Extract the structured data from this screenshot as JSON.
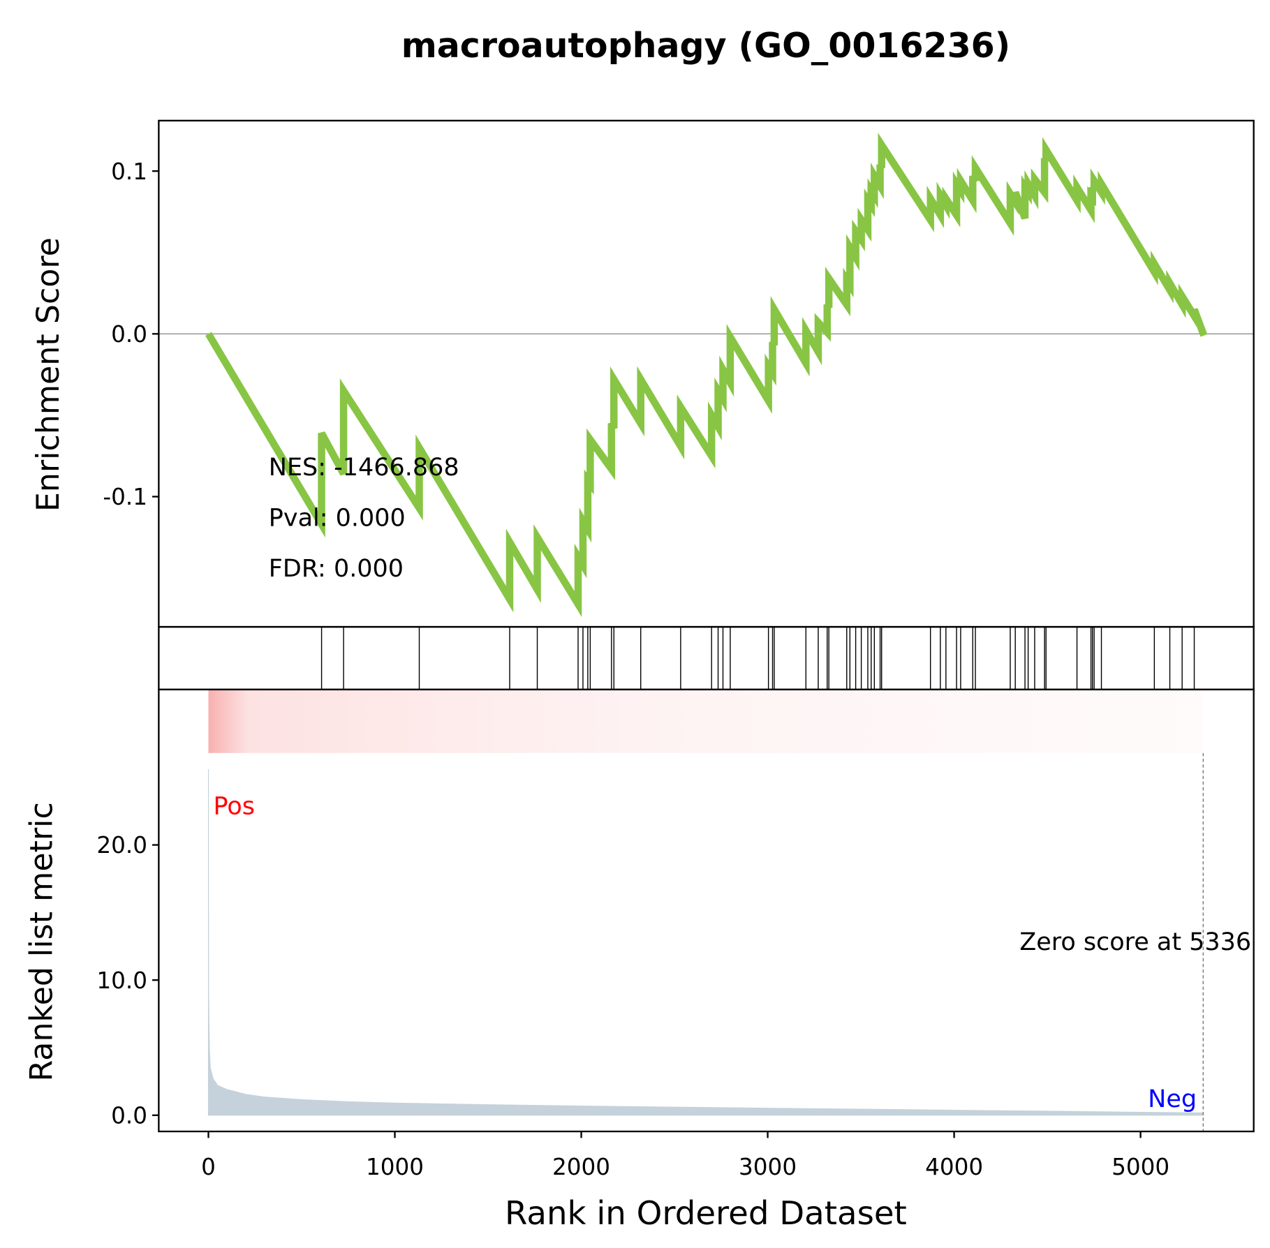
{
  "chart_data": [
    {
      "type": "line",
      "title": "macroautophagy (GO_0016236)",
      "ylabel": "Enrichment Score",
      "color": "#88c544",
      "annotations": [
        "NES: -1466.868",
        "Pval: 0.000",
        "FDR: 0.000"
      ],
      "xlim": [
        -266.4,
        5607
      ],
      "ylim": [
        -0.18,
        0.131
      ],
      "yticks": [
        -0.1,
        {
          "value": 0,
          "label": "0.0"
        },
        0.1
      ],
      "x": [
        0,
        607,
        607,
        725,
        725,
        1131,
        1131,
        1616,
        1616,
        1764,
        1764,
        1983,
        1983,
        2009,
        2009,
        2035,
        2035,
        2048,
        2048,
        2162,
        2162,
        2175,
        2175,
        2319,
        2319,
        2533,
        2533,
        2699,
        2699,
        2734,
        2734,
        2760,
        2760,
        2799,
        2799,
        3004,
        3004,
        3026,
        3026,
        3035,
        3035,
        3205,
        3205,
        3271,
        3271,
        3319,
        3319,
        3328,
        3328,
        3424,
        3424,
        3441,
        3441,
        3472,
        3472,
        3502,
        3502,
        3537,
        3537,
        3555,
        3555,
        3572,
        3572,
        3603,
        3603,
        3611,
        3611,
        3873,
        3873,
        3926,
        3926,
        3956,
        3956,
        4013,
        4013,
        4035,
        4035,
        4100,
        4100,
        4114,
        4114,
        4301,
        4301,
        4328,
        4328,
        4380,
        4380,
        4397,
        4397,
        4432,
        4432,
        4485,
        4485,
        4493,
        4493,
        4659,
        4659,
        4734,
        4734,
        4742,
        4742,
        4751,
        4751,
        4790,
        4790,
        5074,
        5074,
        5157,
        5157,
        5223,
        5223,
        5288,
        5288,
        5340
      ],
      "values": [
        0.0,
        -0.117,
        -0.061,
        -0.086,
        -0.035,
        -0.107,
        -0.07,
        -0.163,
        -0.128,
        -0.157,
        -0.125,
        -0.166,
        -0.137,
        -0.142,
        -0.115,
        -0.12,
        -0.09,
        -0.092,
        -0.065,
        -0.083,
        -0.055,
        -0.058,
        -0.028,
        -0.055,
        -0.028,
        -0.069,
        -0.045,
        -0.075,
        -0.05,
        -0.057,
        -0.035,
        -0.04,
        -0.022,
        -0.03,
        -0.002,
        -0.041,
        -0.02,
        -0.024,
        -0.005,
        -0.007,
        0.015,
        -0.018,
        0.002,
        -0.011,
        0.007,
        0.001,
        0.018,
        0.016,
        0.034,
        0.018,
        0.033,
        0.03,
        0.053,
        0.047,
        0.063,
        0.058,
        0.07,
        0.064,
        0.082,
        0.079,
        0.088,
        0.085,
        0.097,
        0.091,
        0.104,
        0.102,
        0.116,
        0.07,
        0.083,
        0.073,
        0.085,
        0.079,
        0.083,
        0.073,
        0.092,
        0.088,
        0.094,
        0.082,
        0.097,
        0.094,
        0.102,
        0.068,
        0.086,
        0.081,
        0.087,
        0.071,
        0.09,
        0.087,
        0.092,
        0.085,
        0.095,
        0.087,
        0.108,
        0.106,
        0.113,
        0.082,
        0.09,
        0.076,
        0.085,
        0.084,
        0.09,
        0.088,
        0.094,
        0.087,
        0.092,
        0.038,
        0.043,
        0.027,
        0.031,
        0.018,
        0.023,
        0.011,
        0.015,
        -0.001
      ]
    },
    {
      "type": "rug",
      "xlim": [
        -266.4,
        5607
      ],
      "x": [
        607,
        725,
        1131,
        1616,
        1764,
        1983,
        2009,
        2035,
        2048,
        2162,
        2175,
        2319,
        2533,
        2699,
        2734,
        2760,
        2799,
        3004,
        3026,
        3035,
        3205,
        3271,
        3319,
        3328,
        3424,
        3441,
        3472,
        3502,
        3537,
        3555,
        3572,
        3603,
        3611,
        3873,
        3926,
        3956,
        4013,
        4035,
        4100,
        4114,
        4301,
        4328,
        4380,
        4397,
        4432,
        4485,
        4493,
        4659,
        4734,
        4742,
        4751,
        4790,
        5074,
        5157,
        5223,
        5288
      ]
    },
    {
      "type": "area",
      "ylabel": "Ranked list metric",
      "xlabel": "Rank in Ordered Dataset",
      "color": "#c5d2dc",
      "pos_label": "Pos",
      "neg_label": "Neg",
      "zero_score_label": "Zero score at 5336",
      "zero_score_rank": 5336,
      "xlim": [
        -266.4,
        5607
      ],
      "ylim": [
        -1.2,
        31.5
      ],
      "xticks": [
        0,
        1000,
        2000,
        3000,
        4000,
        5000
      ],
      "yticks": [
        {
          "value": 0,
          "label": "0.0"
        },
        {
          "value": 10,
          "label": "10.0"
        },
        {
          "value": 20,
          "label": "20.0"
        }
      ],
      "x": [
        0,
        1,
        5,
        10,
        25,
        50,
        100,
        200,
        300,
        500,
        750,
        1000,
        1500,
        2000,
        2500,
        3000,
        3500,
        4000,
        4500,
        5000,
        5336
      ],
      "values": [
        25.6,
        9,
        5,
        3.5,
        2.7,
        2.2,
        1.9,
        1.55,
        1.35,
        1.15,
        1.0,
        0.9,
        0.78,
        0.68,
        0.6,
        0.52,
        0.45,
        0.37,
        0.3,
        0.22,
        0.17
      ]
    }
  ]
}
